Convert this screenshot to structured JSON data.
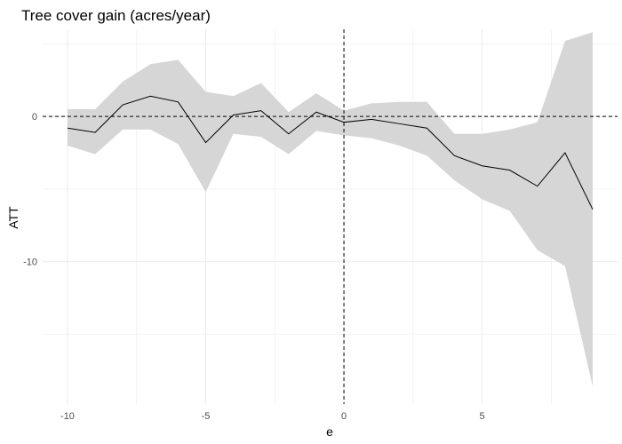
{
  "chart_data": {
    "type": "line",
    "title": "Tree cover gain (acres/year)",
    "xlabel": "e",
    "ylabel": "ATT",
    "xlim": [
      -10.9,
      9.9
    ],
    "ylim": [
      -19.8,
      6.0
    ],
    "x_ticks": [
      -10,
      -5,
      0,
      5
    ],
    "y_ticks": [
      0,
      -10
    ],
    "grid": true,
    "reference_lines": {
      "x": 0,
      "y": 0,
      "style": "dashed"
    },
    "series": [
      {
        "x": [
          -10,
          -9,
          -8,
          -7,
          -6,
          -5,
          -4,
          -3,
          -2,
          -1,
          0,
          1,
          2,
          3,
          4,
          5,
          6,
          7,
          8,
          9
        ],
        "values": [
          -0.8,
          -1.1,
          0.8,
          1.4,
          1.0,
          -1.8,
          0.1,
          0.4,
          -1.2,
          0.3,
          -0.4,
          -0.2,
          -0.5,
          -0.8,
          -2.7,
          -3.4,
          -3.7,
          -4.8,
          -2.5,
          -6.4
        ],
        "lower": [
          -2.0,
          -2.6,
          -0.9,
          -0.9,
          -1.9,
          -5.2,
          -1.2,
          -1.4,
          -2.6,
          -1.0,
          -1.3,
          -1.5,
          -2.0,
          -2.7,
          -4.4,
          -5.7,
          -6.5,
          -9.2,
          -10.3,
          -18.6
        ],
        "upper": [
          0.5,
          0.5,
          2.4,
          3.6,
          3.9,
          1.7,
          1.4,
          2.3,
          0.3,
          1.6,
          0.4,
          0.9,
          1.0,
          1.0,
          -1.2,
          -1.2,
          -0.9,
          -0.4,
          5.2,
          5.8
        ]
      }
    ]
  }
}
